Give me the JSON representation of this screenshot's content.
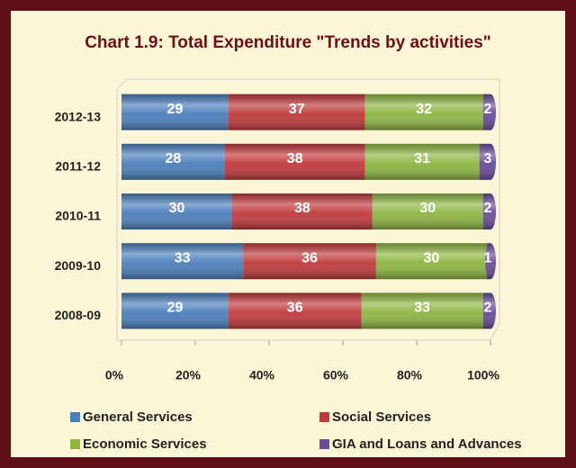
{
  "chart_data": {
    "type": "bar",
    "orientation": "horizontal",
    "stacked": true,
    "title": "Chart 1.9: Total Expenditure \"Trends by activities\"",
    "categories": [
      "2012-13",
      "2011-12",
      "2010-11",
      "2009-10",
      "2008-09"
    ],
    "series": [
      {
        "name": "General Services",
        "color": "#4a7ebb",
        "values": [
          29,
          28,
          30,
          33,
          29
        ]
      },
      {
        "name": "Social Services",
        "color": "#c0393b",
        "values": [
          37,
          38,
          38,
          36,
          36
        ]
      },
      {
        "name": "Economic Services",
        "color": "#8db542",
        "values": [
          32,
          31,
          30,
          30,
          33
        ]
      },
      {
        "name": "GIA and Loans and Advances",
        "color": "#6a4a9c",
        "values": [
          2,
          3,
          2,
          1,
          2
        ]
      }
    ],
    "xlim": [
      0,
      100
    ],
    "xticks": [
      {
        "value": 0,
        "label": "0%"
      },
      {
        "value": 20,
        "label": "20%"
      },
      {
        "value": 40,
        "label": "40%"
      },
      {
        "value": 60,
        "label": "60%"
      },
      {
        "value": 80,
        "label": "80%"
      },
      {
        "value": 100,
        "label": "100%"
      }
    ],
    "legend": "bottom"
  }
}
